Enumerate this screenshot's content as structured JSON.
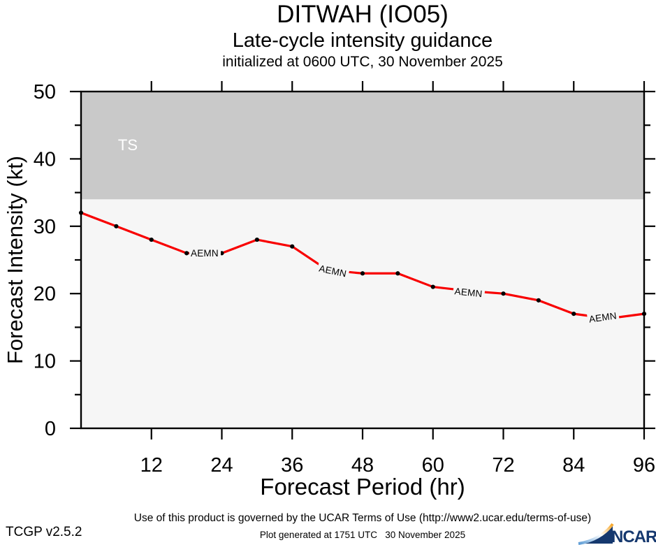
{
  "header": {
    "title": "DITWAH (IO05)",
    "subtitle": "Late-cycle intensity guidance",
    "init_line": "initialized at 0600 UTC, 30 November 2025"
  },
  "chart_data": {
    "type": "line",
    "title": "DITWAH (IO05) late-cycle intensity guidance, initialized at 0600 UTC, 30 November 2025",
    "xlabel": "Forecast Period (hr)",
    "ylabel": "Forecast Intensity (kt)",
    "xlim": [
      0,
      96
    ],
    "ylim": [
      0,
      50
    ],
    "x_ticks": [
      12,
      24,
      36,
      48,
      60,
      72,
      84,
      96
    ],
    "y_ticks": [
      0,
      10,
      20,
      30,
      40,
      50
    ],
    "y_minor_ticks": [
      5,
      15,
      25,
      35,
      45
    ],
    "grid": false,
    "legend_position": "none",
    "plot_bg": "#f6f6f6",
    "frame_color": "#000000",
    "threshold_bands": [
      {
        "label": "TS",
        "from": 34,
        "to": 50,
        "color": "#c9c9c9",
        "label_color": "#ffffff",
        "label_pos": {
          "hour": 6.3,
          "value": 41.3
        }
      }
    ],
    "series": [
      {
        "name": "AEMN",
        "color": "#f80000",
        "marker": "dot",
        "marker_color": "#000000",
        "x": [
          0,
          6,
          12,
          18,
          24,
          30,
          36,
          42,
          48,
          54,
          60,
          66,
          72,
          78,
          84,
          90,
          96
        ],
        "values": [
          32,
          30,
          28,
          26,
          26,
          28,
          27,
          23.5,
          23,
          23,
          21,
          20.4,
          20,
          19,
          17,
          16.3,
          17
        ]
      }
    ],
    "inline_labels": [
      {
        "text": "AEMN",
        "hour": 18.7,
        "value": 26.0,
        "rotate": 0
      },
      {
        "text": "AEMN",
        "hour": 40.6,
        "value": 23.8,
        "rotate": 12
      },
      {
        "text": "AEMN",
        "hour": 63.7,
        "value": 20.4,
        "rotate": 6
      },
      {
        "text": "AEMN",
        "hour": 86.6,
        "value": 16.2,
        "rotate": -8
      }
    ]
  },
  "footer": {
    "terms": "Use of this product is governed by the UCAR Terms of Use (http://www2.ucar.edu/terms-of-use)",
    "version": "TCGP v2.5.2",
    "generated": "Plot generated at 1751 UTC   30 November 2025",
    "logo_text": "NCAR"
  }
}
